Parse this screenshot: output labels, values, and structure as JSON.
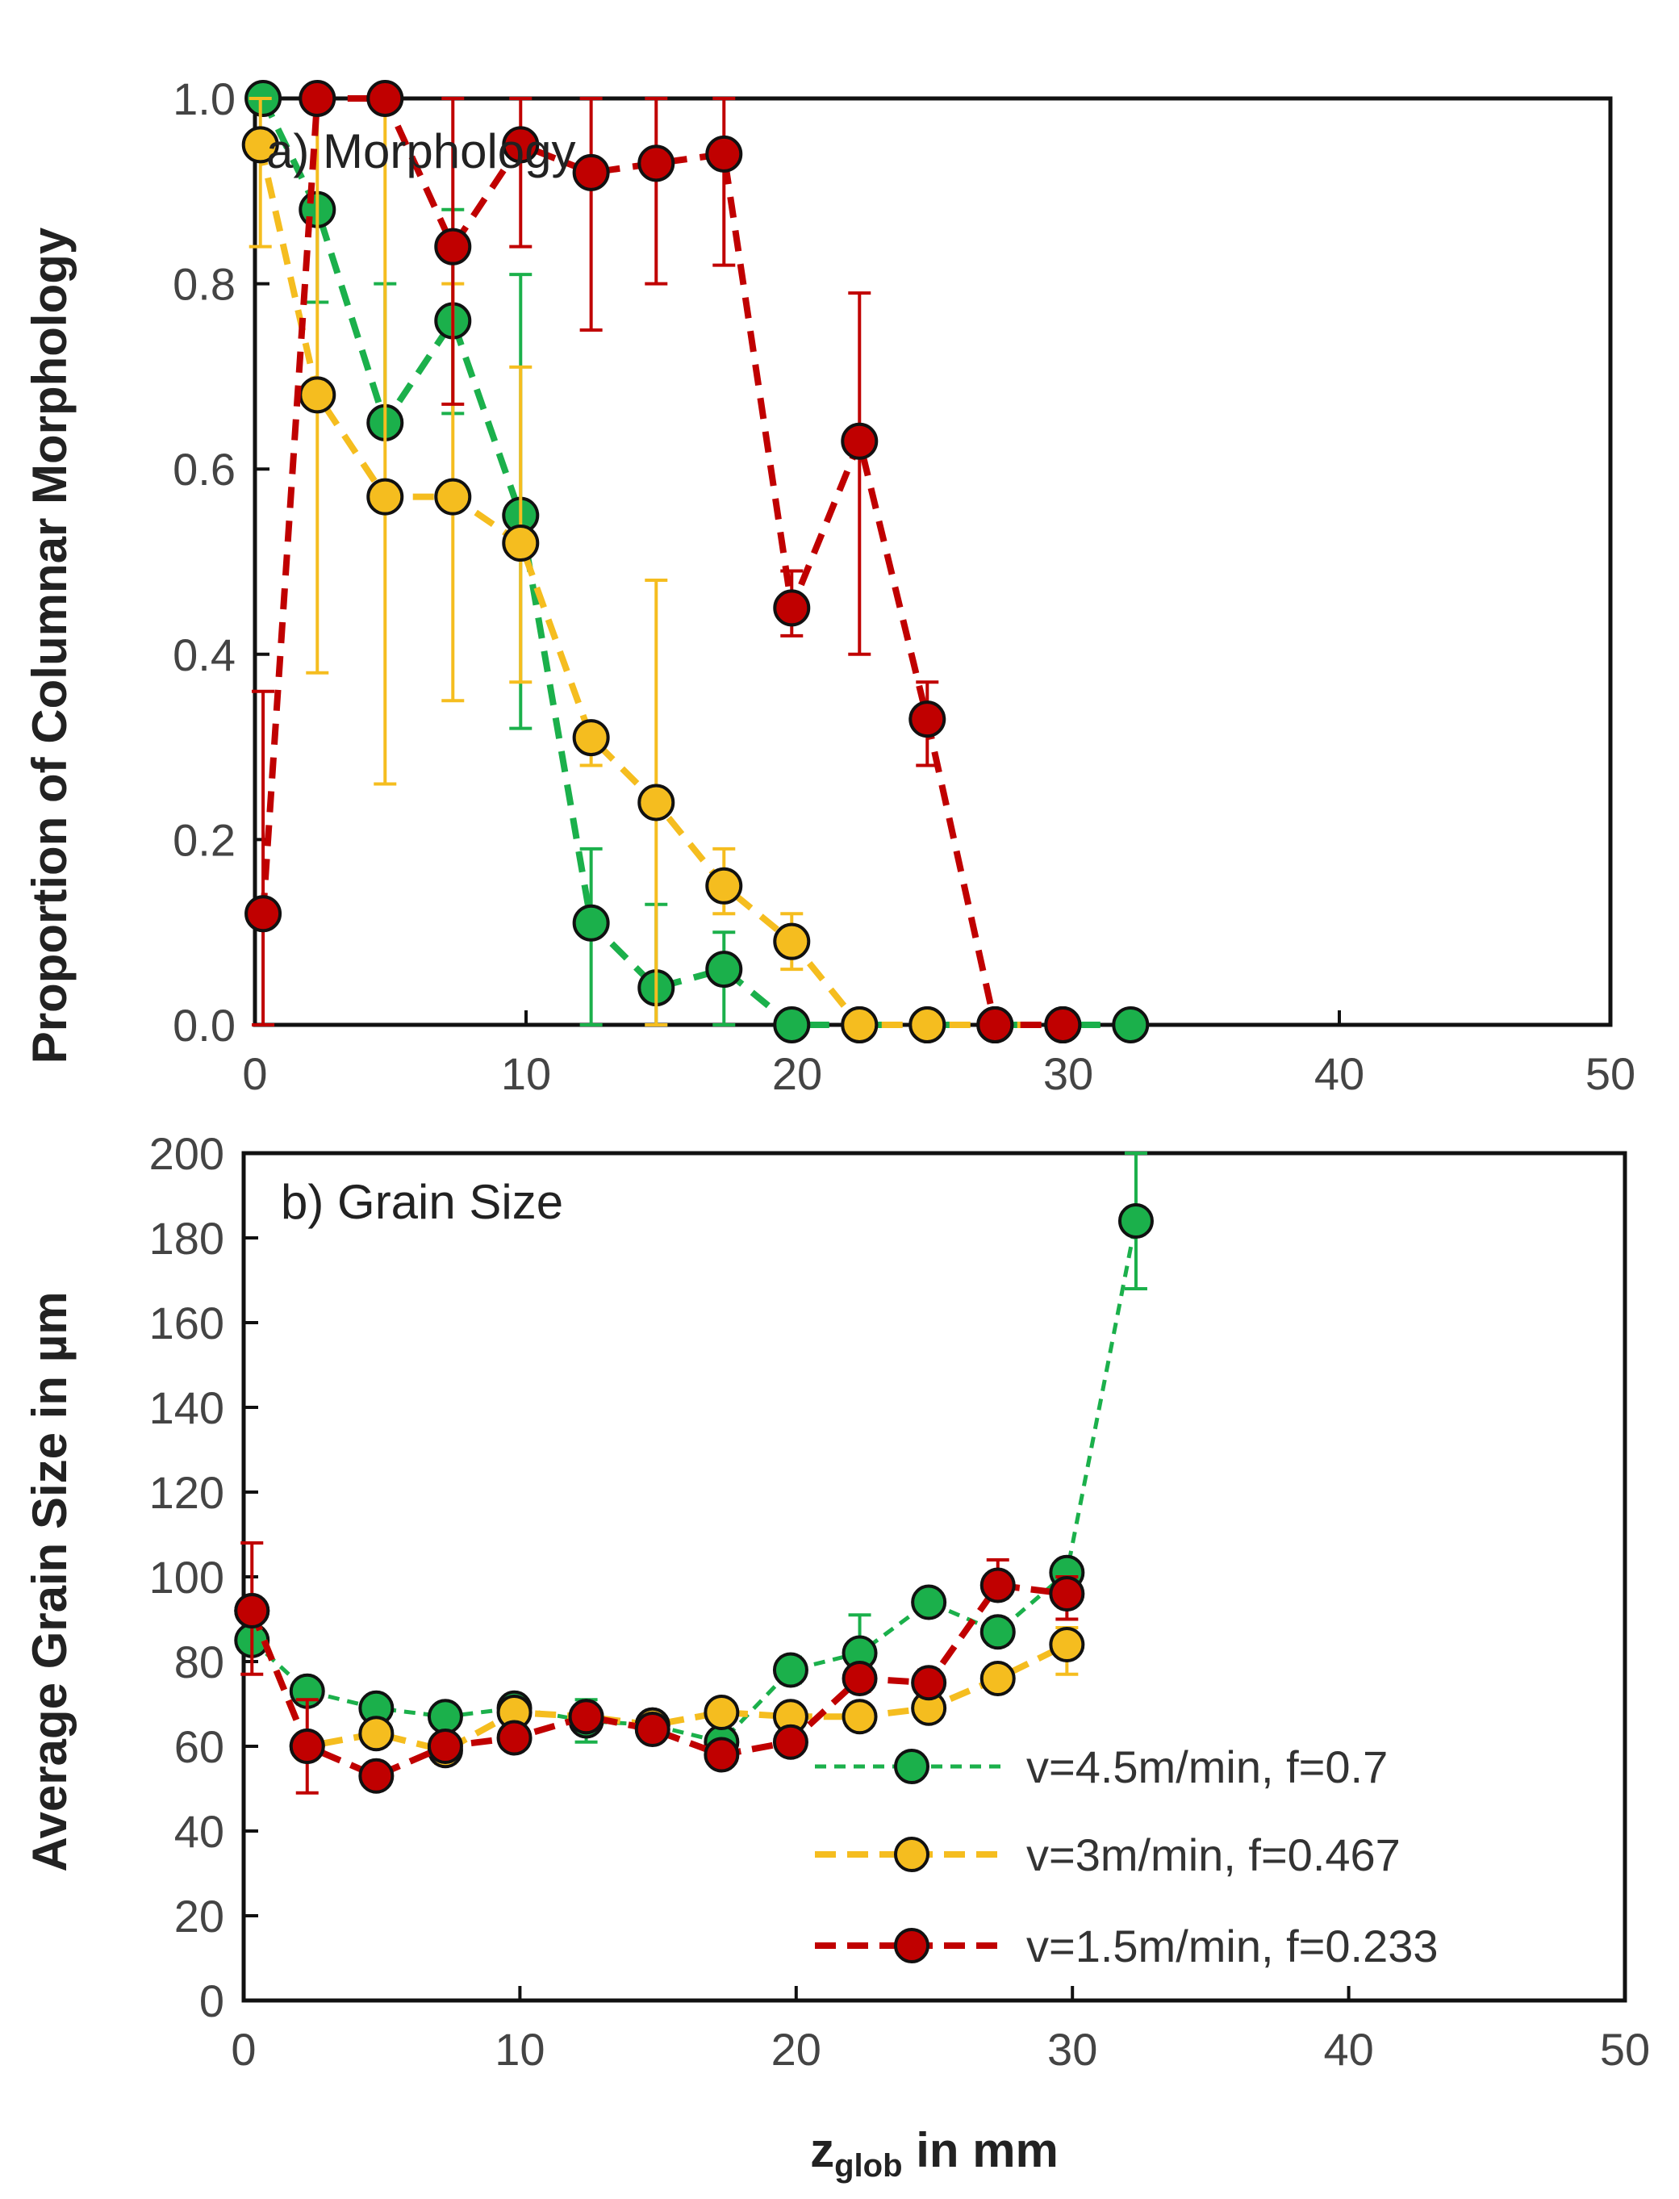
{
  "chart_data": [
    {
      "type": "line",
      "title": "a) Morphology",
      "xlabel": "",
      "ylabel": "Proportion of Columnar  Morphology",
      "xlim": [
        0,
        50
      ],
      "ylim": [
        0,
        1.0
      ],
      "xticks": [
        "0",
        "10",
        "20",
        "30",
        "40",
        "50"
      ],
      "yticks": [
        "0.0",
        "0.2",
        "0.4",
        "0.6",
        "0.8",
        "1.0"
      ],
      "series": [
        {
          "name": "v=4.5m/min, f=0.7",
          "color": "#1bb04b",
          "points": [
            {
              "x": 0.3,
              "y": 1.0,
              "lo": 1.0,
              "hi": 1.0
            },
            {
              "x": 2.3,
              "y": 0.88,
              "lo": 0.78,
              "hi": 0.88
            },
            {
              "x": 4.8,
              "y": 0.65,
              "lo": 0.65,
              "hi": 0.8
            },
            {
              "x": 7.3,
              "y": 0.76,
              "lo": 0.66,
              "hi": 0.88
            },
            {
              "x": 9.8,
              "y": 0.55,
              "lo": 0.32,
              "hi": 0.81
            },
            {
              "x": 12.4,
              "y": 0.11,
              "lo": 0.0,
              "hi": 0.19
            },
            {
              "x": 14.8,
              "y": 0.04,
              "lo": 0.0,
              "hi": 0.13
            },
            {
              "x": 17.3,
              "y": 0.06,
              "lo": 0.0,
              "hi": 0.1
            },
            {
              "x": 19.8,
              "y": 0.0,
              "lo": 0.0,
              "hi": 0.0
            },
            {
              "x": 22.3,
              "y": 0.0,
              "lo": 0.0,
              "hi": 0.0
            },
            {
              "x": 24.8,
              "y": 0.0,
              "lo": 0.0,
              "hi": 0.0
            },
            {
              "x": 27.3,
              "y": 0.0,
              "lo": 0.0,
              "hi": 0.0
            },
            {
              "x": 29.8,
              "y": 0.0,
              "lo": 0.0,
              "hi": 0.0
            },
            {
              "x": 32.3,
              "y": 0.0,
              "lo": 0.0,
              "hi": 0.0
            }
          ]
        },
        {
          "name": "v=3m/min, f=0.467",
          "color": "#f5bd1f",
          "points": [
            {
              "x": 0.2,
              "y": 0.95,
              "lo": 0.84,
              "hi": 1.0
            },
            {
              "x": 2.3,
              "y": 0.68,
              "lo": 0.38,
              "hi": 1.0
            },
            {
              "x": 4.8,
              "y": 0.57,
              "lo": 0.26,
              "hi": 1.0
            },
            {
              "x": 7.3,
              "y": 0.57,
              "lo": 0.35,
              "hi": 0.8
            },
            {
              "x": 9.8,
              "y": 0.52,
              "lo": 0.37,
              "hi": 0.71
            },
            {
              "x": 12.4,
              "y": 0.31,
              "lo": 0.28,
              "hi": 0.31
            },
            {
              "x": 14.8,
              "y": 0.24,
              "lo": 0.0,
              "hi": 0.48
            },
            {
              "x": 17.3,
              "y": 0.15,
              "lo": 0.12,
              "hi": 0.19
            },
            {
              "x": 19.8,
              "y": 0.09,
              "lo": 0.06,
              "hi": 0.12
            },
            {
              "x": 22.3,
              "y": 0.0,
              "lo": 0.0,
              "hi": 0.0
            },
            {
              "x": 24.8,
              "y": 0.0,
              "lo": 0.0,
              "hi": 0.0
            },
            {
              "x": 27.3,
              "y": 0.0,
              "lo": 0.0,
              "hi": 0.0
            },
            {
              "x": 29.8,
              "y": 0.0,
              "lo": 0.0,
              "hi": 0.0
            }
          ]
        },
        {
          "name": "v=1.5m/min, f=0.233",
          "color": "#c00000",
          "points": [
            {
              "x": 0.3,
              "y": 0.12,
              "lo": 0.0,
              "hi": 0.36
            },
            {
              "x": 2.3,
              "y": 1.0,
              "lo": 1.0,
              "hi": 1.0
            },
            {
              "x": 4.8,
              "y": 1.0,
              "lo": 1.0,
              "hi": 1.0
            },
            {
              "x": 7.3,
              "y": 0.84,
              "lo": 0.67,
              "hi": 1.0
            },
            {
              "x": 9.8,
              "y": 0.95,
              "lo": 0.84,
              "hi": 1.0
            },
            {
              "x": 12.4,
              "y": 0.92,
              "lo": 0.75,
              "hi": 1.0
            },
            {
              "x": 14.8,
              "y": 0.93,
              "lo": 0.8,
              "hi": 1.0
            },
            {
              "x": 17.3,
              "y": 0.94,
              "lo": 0.82,
              "hi": 1.0
            },
            {
              "x": 19.8,
              "y": 0.45,
              "lo": 0.42,
              "hi": 0.49
            },
            {
              "x": 22.3,
              "y": 0.63,
              "lo": 0.4,
              "hi": 0.79
            },
            {
              "x": 24.8,
              "y": 0.33,
              "lo": 0.28,
              "hi": 0.37
            },
            {
              "x": 27.3,
              "y": 0.0,
              "lo": 0.0,
              "hi": 0.0
            },
            {
              "x": 29.8,
              "y": 0.0,
              "lo": 0.0,
              "hi": 0.0
            }
          ]
        }
      ]
    },
    {
      "type": "line",
      "title": "b) Grain Size",
      "xlabel_main": "z",
      "xlabel_sub": "glob",
      "xlabel_rest": " in mm",
      "ylabel": "Average Grain  Size in µm",
      "xlim": [
        0,
        50
      ],
      "ylim": [
        0,
        200
      ],
      "xticks": [
        "0",
        "10",
        "20",
        "30",
        "40",
        "50"
      ],
      "yticks": [
        "0",
        "20",
        "40",
        "60",
        "80",
        "100",
        "120",
        "140",
        "160",
        "180",
        "200"
      ],
      "legend_position": "bottom-right",
      "series": [
        {
          "name": "v=4.5m/min, f=0.7",
          "color": "#1bb04b",
          "points": [
            {
              "x": 0.3,
              "y": 85,
              "lo": 85,
              "hi": 85
            },
            {
              "x": 2.3,
              "y": 73,
              "lo": 70,
              "hi": 75
            },
            {
              "x": 4.8,
              "y": 69,
              "lo": 66,
              "hi": 71
            },
            {
              "x": 7.3,
              "y": 67,
              "lo": 65,
              "hi": 69
            },
            {
              "x": 9.8,
              "y": 69,
              "lo": 66,
              "hi": 71
            },
            {
              "x": 12.4,
              "y": 66,
              "lo": 61,
              "hi": 71
            },
            {
              "x": 14.8,
              "y": 65,
              "lo": 62,
              "hi": 67
            },
            {
              "x": 17.3,
              "y": 61,
              "lo": 59,
              "hi": 63
            },
            {
              "x": 19.8,
              "y": 78,
              "lo": 75,
              "hi": 81
            },
            {
              "x": 22.3,
              "y": 82,
              "lo": 76,
              "hi": 91
            },
            {
              "x": 24.8,
              "y": 94,
              "lo": 92,
              "hi": 96
            },
            {
              "x": 27.3,
              "y": 87,
              "lo": 84,
              "hi": 90
            },
            {
              "x": 29.8,
              "y": 101,
              "lo": 98,
              "hi": 103
            },
            {
              "x": 32.3,
              "y": 184,
              "lo": 168,
              "hi": 200
            }
          ]
        },
        {
          "name": "v=3m/min, f=0.467",
          "color": "#f5bd1f",
          "points": [
            {
              "x": 0.3,
              "y": 92,
              "lo": 90,
              "hi": 94
            },
            {
              "x": 2.3,
              "y": 60,
              "lo": 57,
              "hi": 63
            },
            {
              "x": 4.8,
              "y": 63,
              "lo": 60,
              "hi": 65
            },
            {
              "x": 7.3,
              "y": 59,
              "lo": 56,
              "hi": 61
            },
            {
              "x": 9.8,
              "y": 68,
              "lo": 65,
              "hi": 70
            },
            {
              "x": 12.4,
              "y": 67,
              "lo": 65,
              "hi": 69
            },
            {
              "x": 14.8,
              "y": 65,
              "lo": 63,
              "hi": 67
            },
            {
              "x": 17.3,
              "y": 68,
              "lo": 66,
              "hi": 70
            },
            {
              "x": 19.8,
              "y": 67,
              "lo": 65,
              "hi": 69
            },
            {
              "x": 22.3,
              "y": 67,
              "lo": 65,
              "hi": 69
            },
            {
              "x": 24.8,
              "y": 69,
              "lo": 67,
              "hi": 71
            },
            {
              "x": 27.3,
              "y": 76,
              "lo": 74,
              "hi": 78
            },
            {
              "x": 29.8,
              "y": 84,
              "lo": 77,
              "hi": 88
            }
          ]
        },
        {
          "name": "v=1.5m/min, f=0.233",
          "color": "#c00000",
          "points": [
            {
              "x": 0.3,
              "y": 92,
              "lo": 77,
              "hi": 108
            },
            {
              "x": 2.3,
              "y": 60,
              "lo": 49,
              "hi": 71
            },
            {
              "x": 4.8,
              "y": 53,
              "lo": 51,
              "hi": 55
            },
            {
              "x": 7.3,
              "y": 60,
              "lo": 58,
              "hi": 62
            },
            {
              "x": 9.8,
              "y": 62,
              "lo": 60,
              "hi": 64
            },
            {
              "x": 12.4,
              "y": 67,
              "lo": 65,
              "hi": 69
            },
            {
              "x": 14.8,
              "y": 64,
              "lo": 62,
              "hi": 66
            },
            {
              "x": 17.3,
              "y": 58,
              "lo": 56,
              "hi": 60
            },
            {
              "x": 19.8,
              "y": 61,
              "lo": 59,
              "hi": 63
            },
            {
              "x": 22.3,
              "y": 76,
              "lo": 73,
              "hi": 79
            },
            {
              "x": 24.8,
              "y": 75,
              "lo": 72,
              "hi": 78
            },
            {
              "x": 27.3,
              "y": 98,
              "lo": 95,
              "hi": 104
            },
            {
              "x": 29.8,
              "y": 96,
              "lo": 90,
              "hi": 100
            }
          ]
        }
      ]
    }
  ]
}
